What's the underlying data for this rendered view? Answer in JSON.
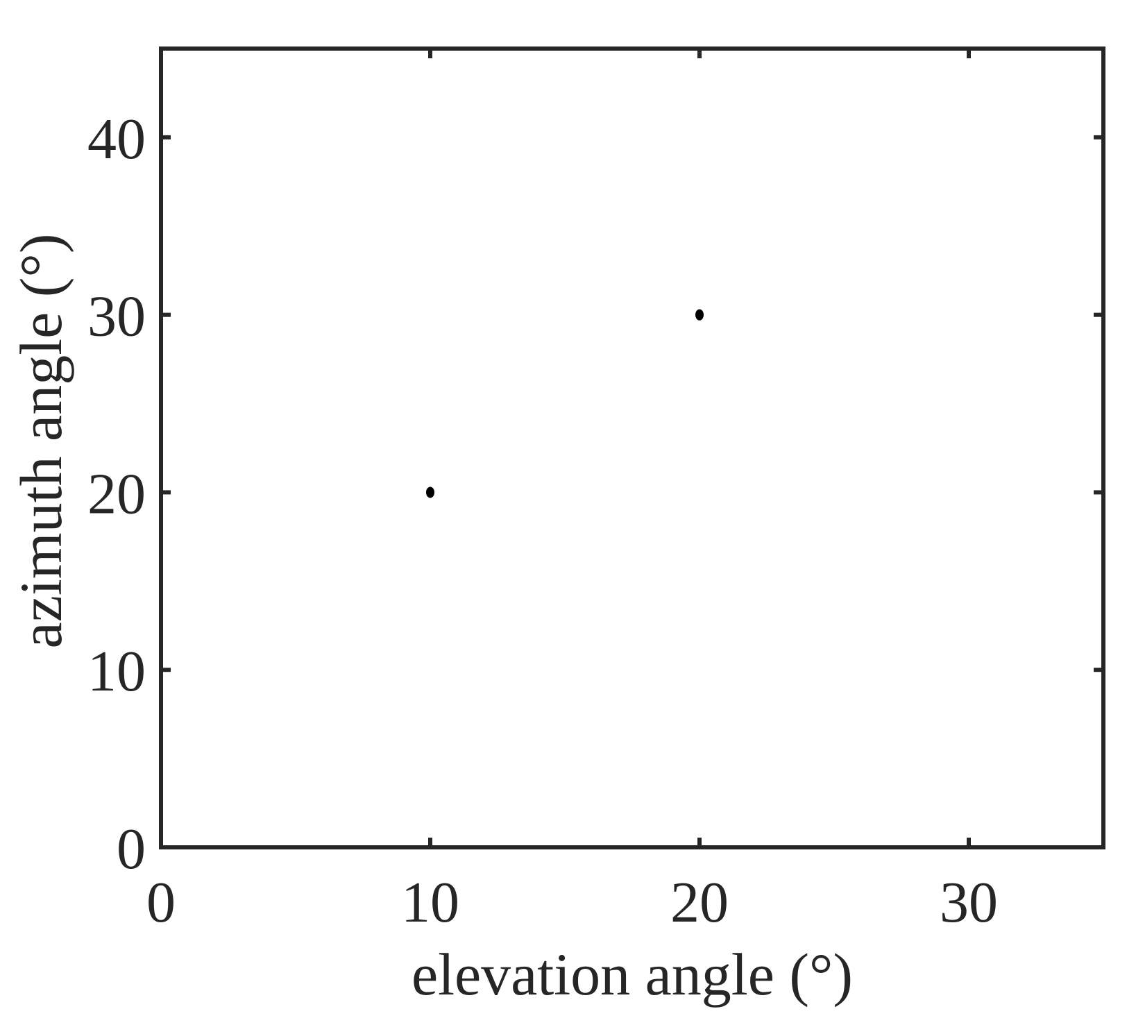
{
  "chart_data": {
    "type": "scatter",
    "title": "",
    "xlabel": "elevation angle (°)",
    "ylabel": "azimuth angle (°)",
    "xlim": [
      0,
      35
    ],
    "ylim": [
      0,
      45
    ],
    "xticks": [
      0,
      10,
      20,
      30
    ],
    "yticks": [
      0,
      10,
      20,
      30,
      40
    ],
    "xtick_labels": [
      "0",
      "10",
      "20",
      "30"
    ],
    "ytick_labels": [
      "0",
      "10",
      "20",
      "30",
      "40"
    ],
    "grid": false,
    "box": true,
    "series": [
      {
        "color": "#000000",
        "marker": "dot",
        "points": [
          {
            "x": 10,
            "y": 20
          },
          {
            "x": 20,
            "y": 30
          }
        ]
      }
    ],
    "colors": {
      "axes": "#262626",
      "text": "#262626",
      "marker": "#000000",
      "background": "#ffffff"
    }
  }
}
